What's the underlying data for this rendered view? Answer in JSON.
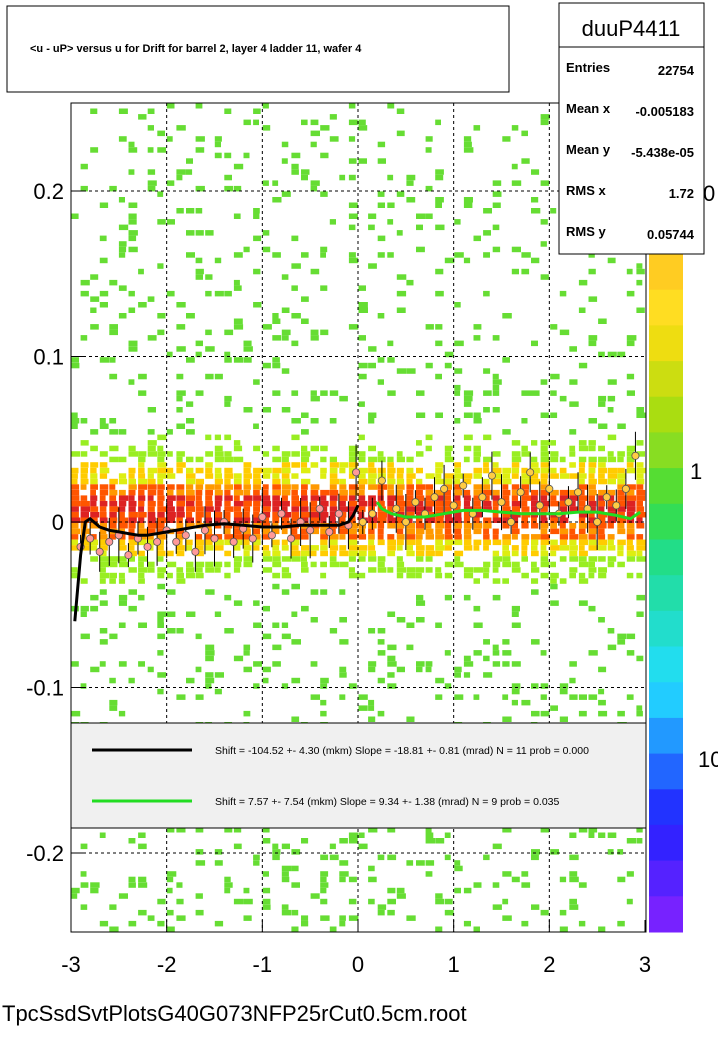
{
  "title": "<u - uP>       versus   u for Drift for barrel 2, layer 4 ladder 11, wafer 4",
  "stats": {
    "name": "duuP4411",
    "rows": [
      {
        "label": "Entries",
        "value": "22754"
      },
      {
        "label": "Mean x",
        "value": "-0.005183"
      },
      {
        "label": "Mean y",
        "value": "-5.438e-05"
      },
      {
        "label": "RMS x",
        "value": "1.72"
      },
      {
        "label": "RMS y",
        "value": "0.05744"
      }
    ]
  },
  "legend": [
    {
      "color": "#000000",
      "text": "Shift =  -104.52 +- 4.30 (mkm) Slope =   -18.81 +- 0.81 (mrad)  N = 11 prob = 0.000"
    },
    {
      "color": "#22dd22",
      "text": "Shift =     7.57 +- 7.54 (mkm) Slope =     9.34 +- 1.38 (mrad)  N = 9 prob = 0.035"
    }
  ],
  "footer": "TpcSsdSvtPlotsG40G073NFP25rCut0.5cm.root",
  "palette_labels": [
    "10",
    "1",
    "0"
  ],
  "colors": {
    "black_fit": "#000000",
    "green_fit": "#22dd22",
    "sparse_bin": "#66dd33",
    "core_bin": "#dd2222",
    "grid": "#000000"
  },
  "chart_data": {
    "type": "heatmap",
    "x_ticks": [
      "-3",
      "-2",
      "-1",
      "0",
      "1",
      "2",
      "3"
    ],
    "y_ticks": [
      "0.2",
      "0.1",
      "0",
      "-0.1",
      "-0.2"
    ],
    "xlim": [
      -3,
      3
    ],
    "ylim": [
      -0.25,
      0.25
    ],
    "grid": true,
    "legend_position": "bottom-inside",
    "fit_black": {
      "x": [
        -2.96,
        -2.9,
        -2.85,
        -2.8,
        -2.7,
        -2.6,
        -2.5,
        -2.4,
        -2.3,
        -2.2,
        -2.1,
        -2.0,
        -1.8,
        -1.6,
        -1.4,
        -1.2,
        -1.0,
        -0.8,
        -0.6,
        -0.4,
        -0.2,
        -0.1,
        -0.05,
        0.0
      ],
      "y": [
        -0.06,
        -0.02,
        0.0,
        0.002,
        -0.003,
        -0.005,
        -0.006,
        -0.007,
        -0.008,
        -0.008,
        -0.007,
        -0.006,
        -0.004,
        -0.002,
        -0.001,
        -0.002,
        -0.003,
        -0.003,
        -0.002,
        -0.002,
        -0.002,
        0.0,
        0.004,
        0.01
      ]
    },
    "fit_green": {
      "x": [
        0.2,
        0.25,
        0.35,
        0.5,
        0.7,
        0.9,
        1.1,
        1.3,
        1.5,
        1.7,
        1.9,
        2.1,
        2.3,
        2.5,
        2.7,
        2.85,
        2.95
      ],
      "y": [
        0.012,
        0.008,
        0.005,
        0.003,
        0.003,
        0.005,
        0.007,
        0.007,
        0.006,
        0.005,
        0.005,
        0.005,
        0.006,
        0.006,
        0.004,
        0.002,
        0.006
      ]
    },
    "profile_points": {
      "x": [
        -2.9,
        -2.8,
        -2.7,
        -2.6,
        -2.5,
        -2.4,
        -2.3,
        -2.2,
        -2.1,
        -2.0,
        -1.9,
        -1.8,
        -1.7,
        -1.6,
        -1.5,
        -1.4,
        -1.3,
        -1.2,
        -1.1,
        -1.0,
        -0.9,
        -0.8,
        -0.7,
        -0.6,
        -0.5,
        -0.4,
        -0.3,
        -0.2,
        -0.1,
        -0.02,
        0.05,
        0.15,
        0.25,
        0.4,
        0.5,
        0.6,
        0.7,
        0.8,
        0.9,
        1.0,
        1.1,
        1.2,
        1.3,
        1.4,
        1.5,
        1.6,
        1.7,
        1.8,
        1.9,
        2.0,
        2.1,
        2.2,
        2.3,
        2.4,
        2.5,
        2.6,
        2.7,
        2.8,
        2.9
      ],
      "y": [
        -0.015,
        -0.01,
        -0.018,
        -0.012,
        -0.008,
        -0.02,
        -0.01,
        -0.015,
        -0.012,
        -0.005,
        -0.012,
        -0.008,
        -0.018,
        -0.005,
        -0.01,
        0.0,
        -0.012,
        -0.004,
        -0.01,
        0.003,
        -0.008,
        0.005,
        -0.01,
        0.0,
        -0.005,
        0.008,
        -0.006,
        0.005,
        -0.002,
        0.03,
        0.0,
        0.005,
        0.025,
        0.008,
        0.0,
        0.012,
        0.005,
        0.015,
        0.02,
        0.01,
        0.022,
        0.005,
        0.015,
        0.028,
        0.012,
        0.0,
        0.018,
        0.03,
        0.01,
        0.02,
        0.005,
        0.012,
        0.018,
        0.008,
        0.0,
        0.015,
        0.01,
        0.02,
        0.04
      ]
    },
    "density_model": {
      "core_center_y": 0.0,
      "core_halfwidth_y": 0.02,
      "total_entries": 22754
    }
  }
}
